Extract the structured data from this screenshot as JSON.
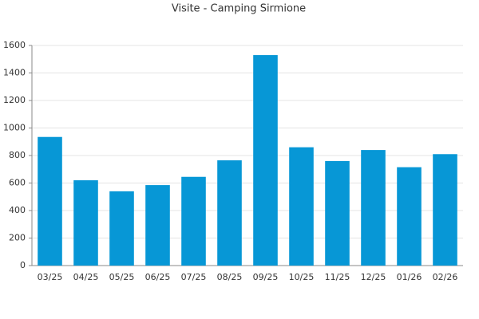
{
  "chart_data": {
    "type": "bar",
    "title": "Visite - Camping Sirmione",
    "categories": [
      "03/25",
      "04/25",
      "05/25",
      "06/25",
      "07/25",
      "08/25",
      "09/25",
      "10/25",
      "11/25",
      "12/25",
      "01/26",
      "02/26"
    ],
    "values": [
      935,
      620,
      540,
      585,
      645,
      765,
      1530,
      860,
      760,
      840,
      715,
      810
    ],
    "color": "#0797d6",
    "ylim": [
      0,
      1600
    ],
    "yticks": [
      0,
      200,
      400,
      600,
      800,
      1000,
      1200,
      1400,
      1600
    ],
    "grid": true
  }
}
